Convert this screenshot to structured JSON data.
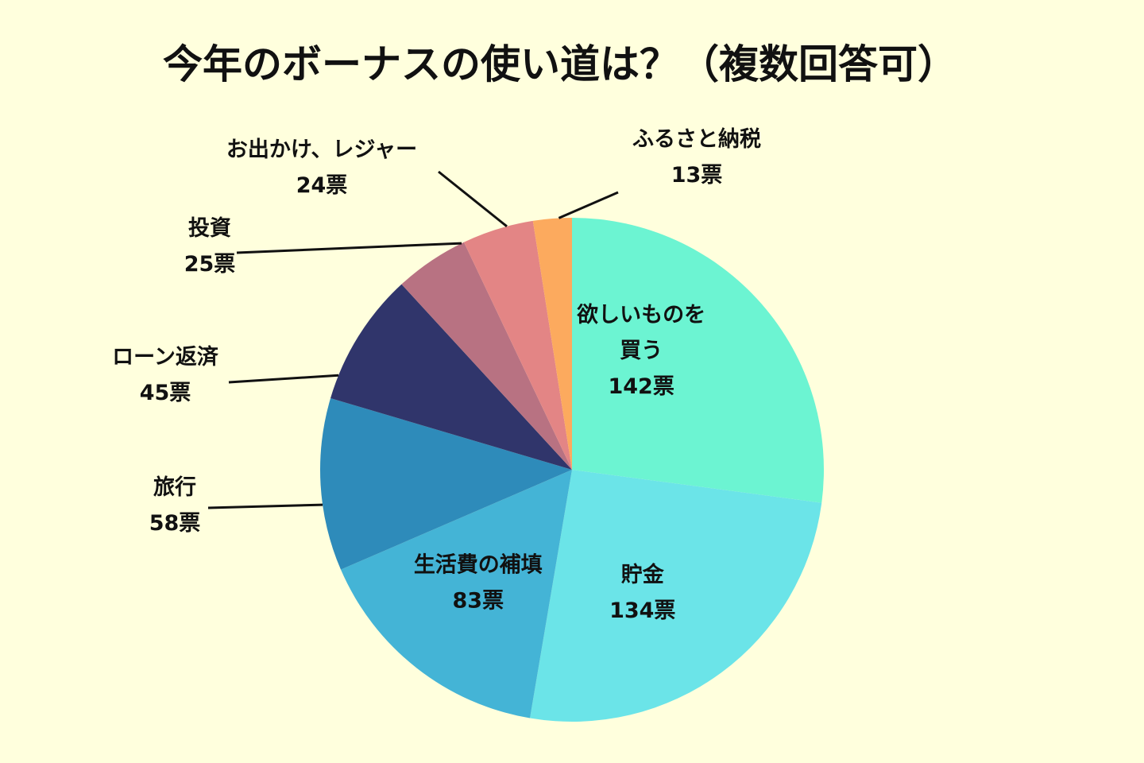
{
  "chart_data": {
    "type": "pie",
    "title": "今年のボーナスの使い道は？（複数回答可）",
    "unit": "票",
    "start": "12 o'clock",
    "direction": "clockwise",
    "slices": [
      {
        "label_lines": [
          "欲しいものを",
          "買う"
        ],
        "value_text": "142票",
        "value": 142,
        "color": "#6cf4d2"
      },
      {
        "label_lines": [
          "貯金"
        ],
        "value_text": "134票",
        "value": 134,
        "color": "#6be4e8"
      },
      {
        "label_lines": [
          "生活費の補填"
        ],
        "value_text": "83票",
        "value": 83,
        "color": "#44b4d6"
      },
      {
        "label_lines": [
          "旅行"
        ],
        "value_text": "58票",
        "value": 58,
        "color": "#2e8bba"
      },
      {
        "label_lines": [
          "ローン返済"
        ],
        "value_text": "45票",
        "value": 45,
        "color": "#30356b"
      },
      {
        "label_lines": [
          "投資"
        ],
        "value_text": "25票",
        "value": 25,
        "color": "#b87282"
      },
      {
        "label_lines": [
          "お出かけ、レジャー"
        ],
        "value_text": "24票",
        "value": 24,
        "color": "#e38585"
      },
      {
        "label_lines": [
          "ふるさと納税"
        ],
        "value_text": "13票",
        "value": 13,
        "color": "#fcaa5e"
      }
    ]
  }
}
